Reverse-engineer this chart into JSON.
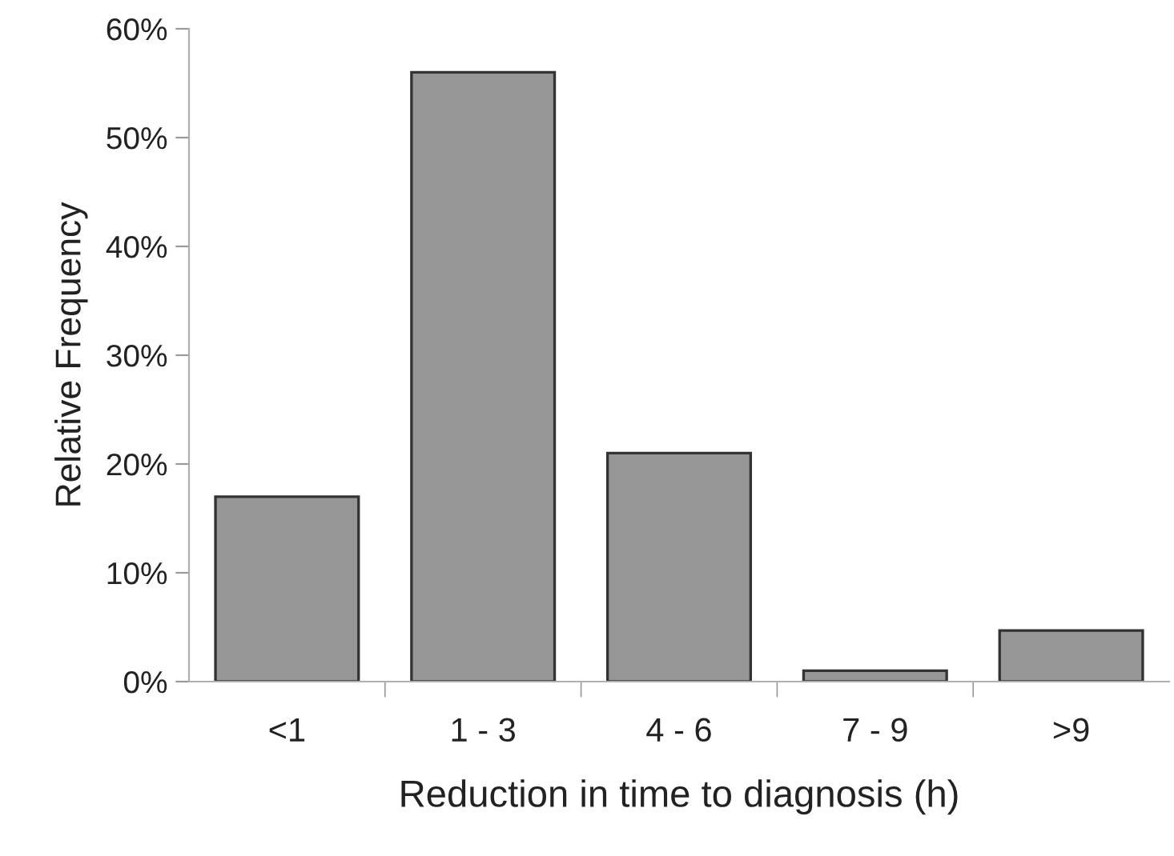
{
  "chart_data": {
    "type": "bar",
    "xlabel": "Reduction in time to diagnosis (h)",
    "ylabel": "Relative Frequency",
    "categories": [
      "<1",
      "1 - 3",
      "4 - 6",
      "7 - 9",
      ">9"
    ],
    "values": [
      17,
      56,
      21,
      1,
      4.7
    ],
    "color": "#969696",
    "ylim": [
      0,
      60
    ],
    "yticks": [
      {
        "value": 0,
        "label": "0%"
      },
      {
        "value": 10,
        "label": "10%"
      },
      {
        "value": 20,
        "label": "20%"
      },
      {
        "value": 30,
        "label": "30%"
      },
      {
        "value": 40,
        "label": "40%"
      },
      {
        "value": 50,
        "label": "50%"
      },
      {
        "value": 60,
        "label": "60%"
      }
    ],
    "grid": false
  }
}
